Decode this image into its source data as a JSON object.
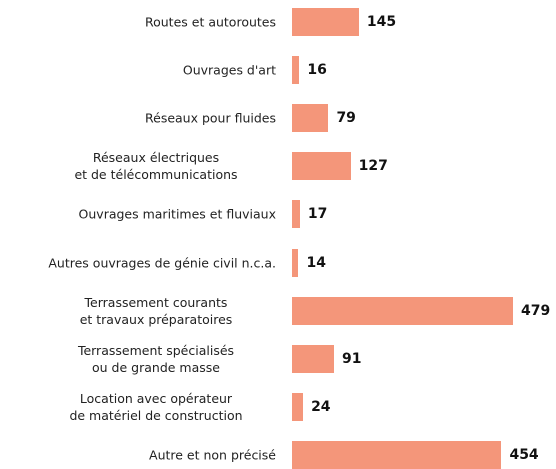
{
  "chart_data": {
    "type": "bar",
    "orientation": "horizontal",
    "categories": [
      "Routes et autoroutes",
      "Ouvrages d'art",
      "Réseaux pour fluides",
      "Réseaux électriques\net de télécommunications",
      "Ouvrages maritimes et fluviaux",
      "Autres ouvrages de génie civil n.c.a.",
      "Terrassement courants\net travaux préparatoires",
      "Terrassement spécialisés\nou de grande masse",
      "Location avec opérateur\nde matériel de construction",
      "Autre et non précisé"
    ],
    "values": [
      145,
      16,
      79,
      127,
      17,
      14,
      479,
      91,
      24,
      454
    ],
    "color": "#f4967a"
  }
}
